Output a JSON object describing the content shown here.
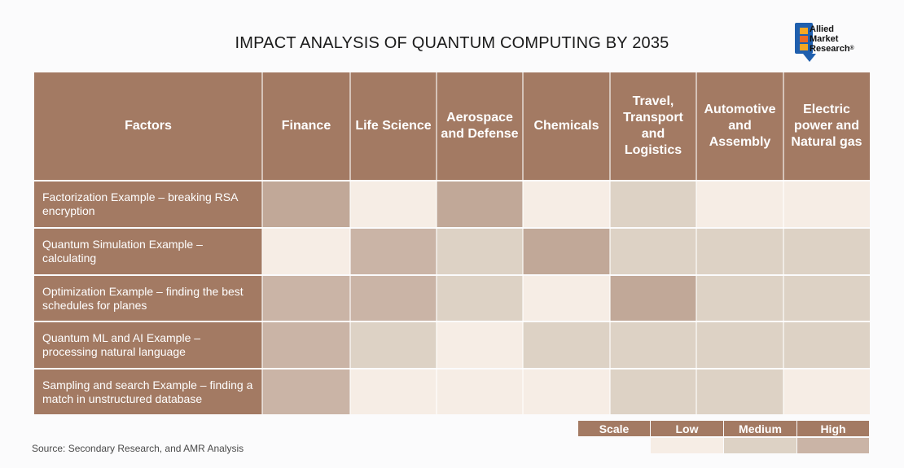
{
  "title": "IMPACT ANALYSIS OF QUANTUM COMPUTING BY 2035",
  "logo": {
    "line1": "Allied",
    "line2": "Market",
    "line3": "Research",
    "mark": "®"
  },
  "source": "Source: Secondary Research, and AMR Analysis",
  "colors": {
    "header": "#a37a63",
    "scale": "#fbfbfc",
    "low": "#f6ede5",
    "medium": "#ddd2c5",
    "high": "#cab4a6",
    "stronger": "#c1a898"
  },
  "chart_data": {
    "type": "table",
    "title": "IMPACT ANALYSIS OF QUANTUM COMPUTING BY 2035",
    "corner_label": "Factors",
    "columns": [
      "Finance",
      "Life Science",
      "Aerospace and Defense",
      "Chemicals",
      "Travel, Transport and Logistics",
      "Automotive and Assembly",
      "Electric power and Natural gas"
    ],
    "rows": [
      "Factorization Example – breaking RSA encryption",
      "Quantum Simulation Example – calculating",
      "Optimization Example – finding the best schedules for planes",
      "Quantum ML and AI Example – processing natural language",
      "Sampling and search Example – finding a match in unstructured database"
    ],
    "levels": [
      [
        "stronger",
        "low",
        "stronger",
        "low",
        "medium",
        "low",
        "low"
      ],
      [
        "low",
        "high",
        "medium",
        "stronger",
        "medium",
        "medium",
        "medium"
      ],
      [
        "high",
        "high",
        "medium",
        "low",
        "stronger",
        "medium",
        "medium"
      ],
      [
        "high",
        "medium",
        "low",
        "medium",
        "medium",
        "medium",
        "medium"
      ],
      [
        "high",
        "low",
        "low",
        "low",
        "medium",
        "medium",
        "low"
      ]
    ],
    "legend": [
      {
        "label": "Scale",
        "key": "scale"
      },
      {
        "label": "Low",
        "key": "low"
      },
      {
        "label": "Medium",
        "key": "medium"
      },
      {
        "label": "High",
        "key": "high"
      }
    ]
  }
}
